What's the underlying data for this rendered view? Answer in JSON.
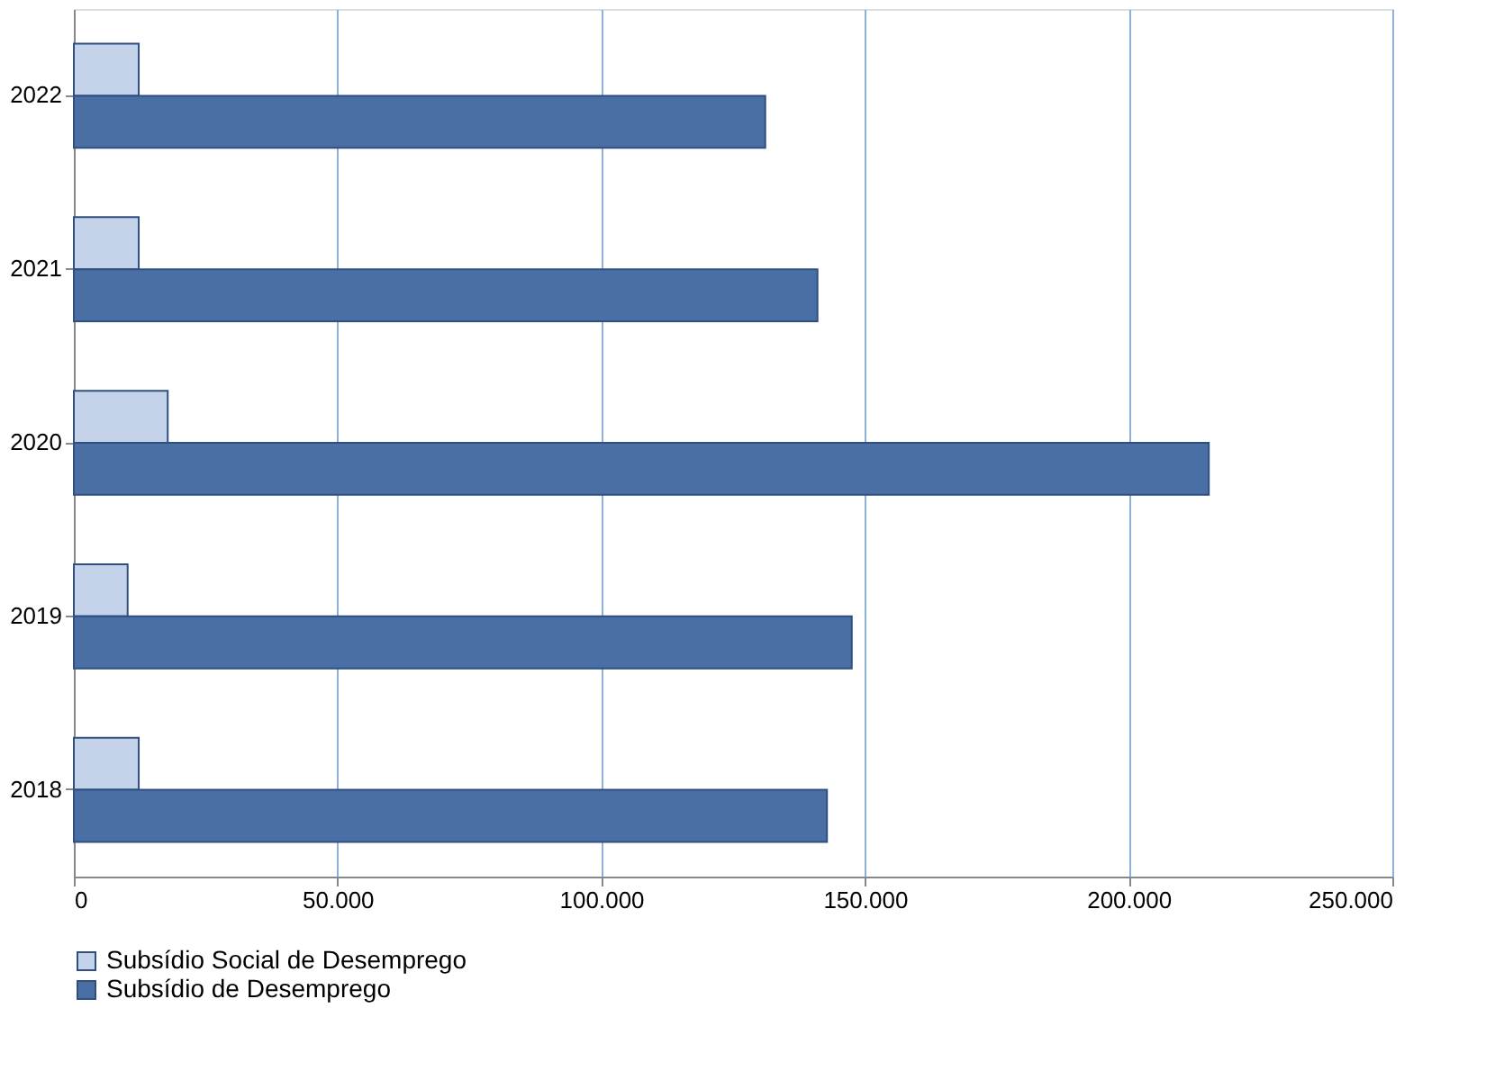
{
  "chart_data": {
    "type": "bar",
    "orientation": "horizontal",
    "categories": [
      "2022",
      "2021",
      "2020",
      "2019",
      "2018"
    ],
    "series": [
      {
        "name": "Subsídio Social de Desemprego",
        "color": "#c5d3ea",
        "values": [
          12300,
          12300,
          17800,
          10200,
          12300
        ]
      },
      {
        "name": "Subsídio de Desemprego",
        "color": "#4a6fa5",
        "values": [
          131100,
          141000,
          215200,
          147500,
          142800
        ]
      }
    ],
    "xlim": [
      0,
      250000
    ],
    "xticks": [
      0,
      {
        "value": 50000,
        "label": "50.000"
      },
      {
        "value": 100000,
        "label": "100.000"
      },
      {
        "value": 150000,
        "label": "150.000"
      },
      {
        "value": 200000,
        "label": "200.000"
      },
      {
        "value": 250000,
        "label": "250.000"
      }
    ],
    "grid": "x",
    "legend": "bottom"
  }
}
